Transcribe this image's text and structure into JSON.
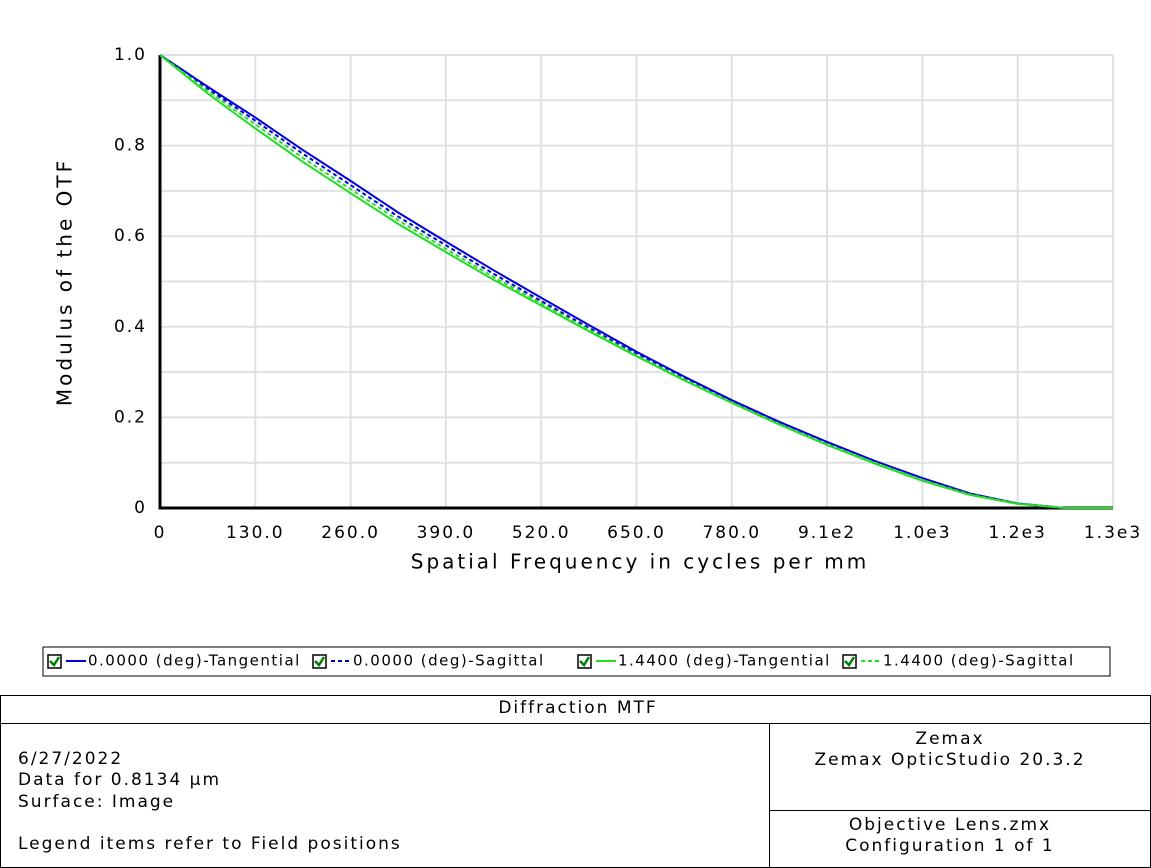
{
  "chart_data": {
    "type": "line",
    "title": "Diffraction MTF",
    "x_label": "Spatial Frequency in cycles per mm",
    "y_label": "Modulus of the OTF",
    "x": [
      0,
      65,
      130,
      195,
      260,
      325,
      390,
      455,
      520,
      585,
      650,
      715,
      780,
      845,
      910,
      975,
      1040,
      1105,
      1170,
      1235,
      1300
    ],
    "series": [
      {
        "name": "0.0000 (deg)-Tangential",
        "color": "#0000dd",
        "style": "solid",
        "values": [
          1.0,
          0.93,
          0.862,
          0.79,
          0.722,
          0.652,
          0.588,
          0.525,
          0.464,
          0.404,
          0.345,
          0.29,
          0.238,
          0.19,
          0.146,
          0.104,
          0.066,
          0.032,
          0.01,
          0,
          0
        ]
      },
      {
        "name": "0.0000 (deg)-Sagittal",
        "color": "#0000dd",
        "style": "dashed",
        "values": [
          1.0,
          0.926,
          0.855,
          0.782,
          0.713,
          0.643,
          0.58,
          0.517,
          0.457,
          0.398,
          0.34,
          0.286,
          0.235,
          0.187,
          0.143,
          0.102,
          0.064,
          0.031,
          0.01,
          0,
          0
        ]
      },
      {
        "name": "1.4400 (deg)-Tangential",
        "color": "#22dd22",
        "style": "solid",
        "values": [
          1.0,
          0.915,
          0.838,
          0.764,
          0.695,
          0.627,
          0.565,
          0.504,
          0.447,
          0.39,
          0.335,
          0.282,
          0.232,
          0.184,
          0.139,
          0.098,
          0.06,
          0.029,
          0.009,
          0,
          0
        ]
      },
      {
        "name": "1.4400 (deg)-Sagittal",
        "color": "#22dd22",
        "style": "dashed",
        "values": [
          1.0,
          0.921,
          0.847,
          0.773,
          0.704,
          0.635,
          0.572,
          0.51,
          0.452,
          0.394,
          0.337,
          0.284,
          0.233,
          0.185,
          0.141,
          0.1,
          0.062,
          0.03,
          0.01,
          0,
          0
        ]
      }
    ],
    "xlim": [
      0,
      1300
    ],
    "xticks": [
      0,
      {
        "value": 130,
        "label": "130.0"
      },
      {
        "value": 260,
        "label": "260.0"
      },
      {
        "value": 390,
        "label": "390.0"
      },
      {
        "value": 520,
        "label": "520.0"
      },
      {
        "value": 650,
        "label": "650.0"
      },
      {
        "value": 780,
        "label": "780.0"
      },
      {
        "value": 910,
        "label": "9.1e2"
      },
      {
        "value": 1040,
        "label": "1.0e3"
      },
      {
        "value": 1170,
        "label": "1.2e3"
      },
      {
        "value": 1300,
        "label": "1.3e3"
      }
    ],
    "ylim": [
      0,
      1
    ],
    "yticks": [
      0,
      0.2,
      0.4,
      0.6,
      0.8,
      {
        "value": 1,
        "label": "1.0"
      }
    ],
    "y_minor_ticks": [
      0.1,
      0.3,
      0.5,
      0.7,
      0.9
    ],
    "grid": true
  },
  "info": {
    "left": [
      "6/27/2022",
      "Data for 0.8134 µm",
      "Surface: Image",
      "Legend items refer to Field positions"
    ],
    "right_top": [
      "Zemax",
      "Zemax OpticStudio 20.3.2"
    ],
    "right_bottom": [
      "Objective Lens.zmx",
      "Configuration 1 of 1"
    ]
  }
}
